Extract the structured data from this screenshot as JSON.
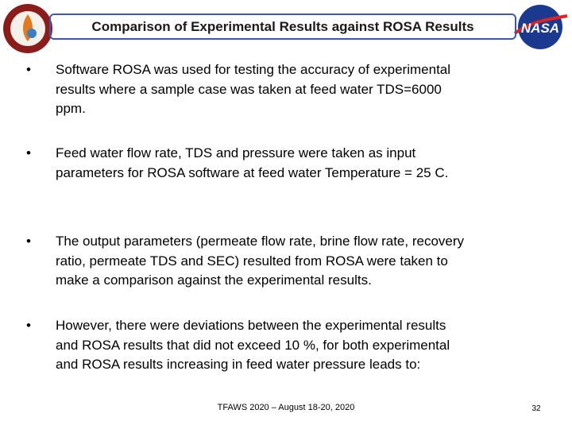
{
  "header": {
    "title": "Comparison of Experimental Results against ROSA Results",
    "logo_right": "NASA"
  },
  "bullets": [
    [
      "Software ROSA was used for testing the accuracy of experimental",
      "results where a sample case was taken at feed water TDS=6000",
      "ppm."
    ],
    [
      "Feed water flow rate, TDS and pressure were taken as input",
      "parameters for ROSA software at feed water Temperature = 25 C."
    ],
    [
      "The output parameters (permeate flow rate, brine flow rate, recovery",
      "ratio, permeate TDS and SEC) resulted from ROSA were taken to",
      "make a comparison against the experimental results."
    ],
    [
      "However, there were deviations between the experimental results",
      "and ROSA results that did not exceed 10 %, for both experimental",
      "and ROSA results increasing in feed water pressure leads to:"
    ]
  ],
  "footer": {
    "text": "TFAWS 2020 – August 18-20, 2020",
    "page": "32"
  }
}
